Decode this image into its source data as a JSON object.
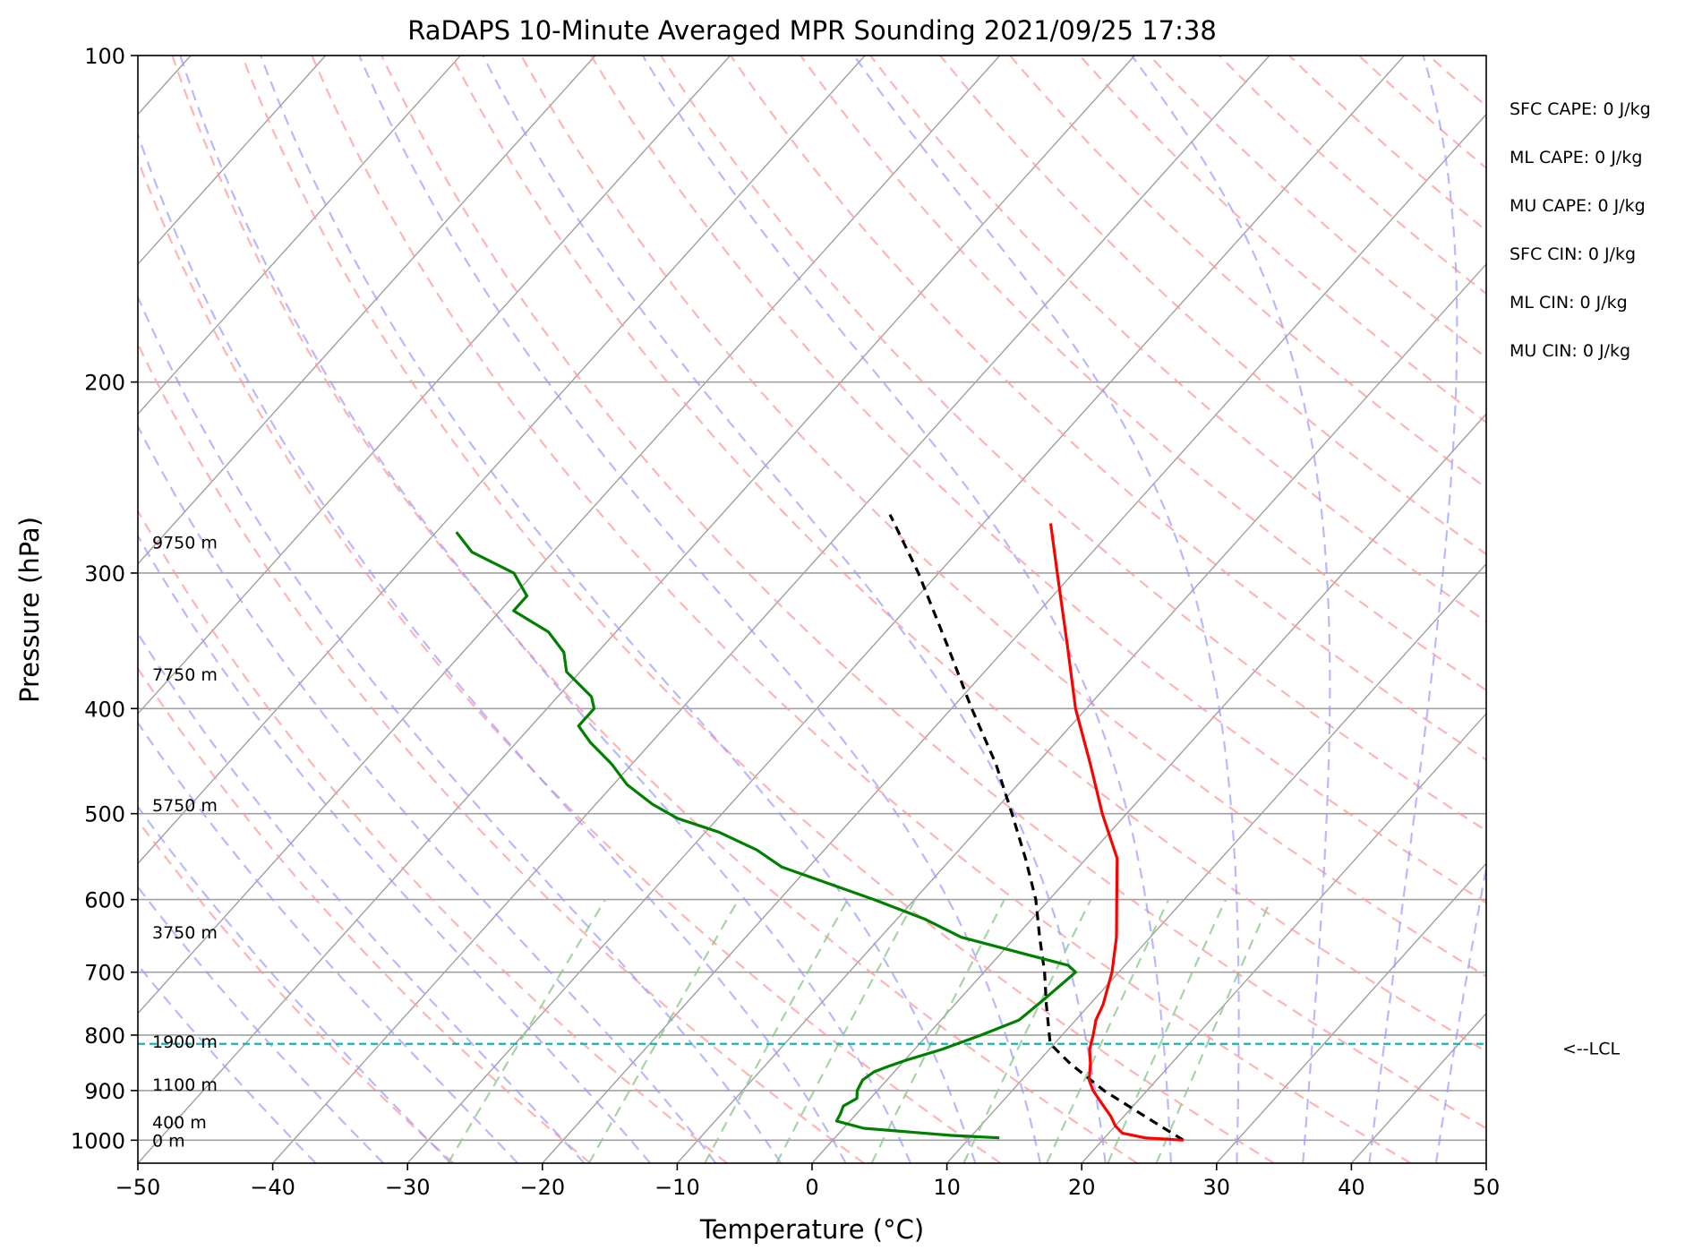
{
  "chart_data": {
    "type": "skew-t log-p sounding",
    "title": "RaDAPS 10-Minute Averaged MPR Sounding 2021/09/25 17:38",
    "xlabel": "Temperature (°C)",
    "ylabel": "Pressure (hPa)",
    "xlim": [
      -50,
      50
    ],
    "ylim_hpa": [
      1050,
      100
    ],
    "x_ticks": [
      "−50",
      "−40",
      "−30",
      "−20",
      "−10",
      "0",
      "10",
      "20",
      "30",
      "40",
      "50"
    ],
    "y_ticks": [
      100,
      200,
      300,
      400,
      500,
      600,
      700,
      800,
      900,
      1000
    ],
    "grid": true,
    "colors": {
      "temperature": "#ff0000",
      "dewpoint": "#008000",
      "parcel": "#000000",
      "isotherms": "#a0a0a0",
      "dry_adiabats": "#ff9a9a",
      "moist_adiabats": "#9a9aff",
      "mixing_ratio": "#90c890",
      "lcl_line": "#20b2aa"
    },
    "temperature_profile": [
      {
        "p": 1000,
        "t": 26.0
      },
      {
        "p": 995,
        "t": 23.0
      },
      {
        "p": 985,
        "t": 21.0
      },
      {
        "p": 970,
        "t": 20.0
      },
      {
        "p": 950,
        "t": 19.0
      },
      {
        "p": 925,
        "t": 17.5
      },
      {
        "p": 900,
        "t": 16.0
      },
      {
        "p": 880,
        "t": 15.0
      },
      {
        "p": 850,
        "t": 14.0
      },
      {
        "p": 825,
        "t": 13.0
      },
      {
        "p": 800,
        "t": 12.3
      },
      {
        "p": 775,
        "t": 11.5
      },
      {
        "p": 750,
        "t": 11.0
      },
      {
        "p": 700,
        "t": 9.5
      },
      {
        "p": 650,
        "t": 7.5
      },
      {
        "p": 600,
        "t": 5.0
      },
      {
        "p": 550,
        "t": 2.3
      },
      {
        "p": 500,
        "t": -1.8
      },
      {
        "p": 450,
        "t": -6.0
      },
      {
        "p": 400,
        "t": -10.8
      },
      {
        "p": 350,
        "t": -15.6
      },
      {
        "p": 300,
        "t": -21.2
      },
      {
        "p": 270,
        "t": -25.0
      }
    ],
    "dewpoint_profile": [
      {
        "p": 995,
        "t": 12.2
      },
      {
        "p": 990,
        "t": 8.5
      },
      {
        "p": 975,
        "t": 1.5
      },
      {
        "p": 960,
        "t": -1.0
      },
      {
        "p": 945,
        "t": -1.2
      },
      {
        "p": 930,
        "t": -1.5
      },
      {
        "p": 915,
        "t": -1.0
      },
      {
        "p": 900,
        "t": -1.5
      },
      {
        "p": 880,
        "t": -1.8
      },
      {
        "p": 865,
        "t": -1.5
      },
      {
        "p": 855,
        "t": -0.8
      },
      {
        "p": 845,
        "t": 0.0
      },
      {
        "p": 825,
        "t": 2.0
      },
      {
        "p": 800,
        "t": 4.0
      },
      {
        "p": 775,
        "t": 5.8
      },
      {
        "p": 740,
        "t": 6.3
      },
      {
        "p": 700,
        "t": 6.8
      },
      {
        "p": 690,
        "t": 5.8
      },
      {
        "p": 650,
        "t": -4.0
      },
      {
        "p": 625,
        "t": -8.0
      },
      {
        "p": 600,
        "t": -13.0
      },
      {
        "p": 560,
        "t": -22.0
      },
      {
        "p": 540,
        "t": -25.0
      },
      {
        "p": 520,
        "t": -29.0
      },
      {
        "p": 505,
        "t": -33.0
      },
      {
        "p": 490,
        "t": -35.8
      },
      {
        "p": 470,
        "t": -39.0
      },
      {
        "p": 450,
        "t": -41.5
      },
      {
        "p": 430,
        "t": -44.5
      },
      {
        "p": 415,
        "t": -46.5
      },
      {
        "p": 400,
        "t": -46.5
      },
      {
        "p": 390,
        "t": -47.5
      },
      {
        "p": 370,
        "t": -51.0
      },
      {
        "p": 355,
        "t": -52.5
      },
      {
        "p": 340,
        "t": -55.0
      },
      {
        "p": 325,
        "t": -59.0
      },
      {
        "p": 315,
        "t": -59.0
      },
      {
        "p": 300,
        "t": -61.5
      },
      {
        "p": 287,
        "t": -66.0
      },
      {
        "p": 275,
        "t": -68.5
      }
    ],
    "parcel_profile": [
      {
        "p": 1000,
        "t": 26.0
      },
      {
        "p": 950,
        "t": 21.5
      },
      {
        "p": 900,
        "t": 16.8
      },
      {
        "p": 850,
        "t": 12.5
      },
      {
        "p": 815,
        "t": 9.7
      },
      {
        "p": 750,
        "t": 6.8
      },
      {
        "p": 700,
        "t": 4.5
      },
      {
        "p": 650,
        "t": 1.8
      },
      {
        "p": 600,
        "t": -1.0
      },
      {
        "p": 550,
        "t": -4.5
      },
      {
        "p": 500,
        "t": -8.5
      },
      {
        "p": 450,
        "t": -13.0
      },
      {
        "p": 400,
        "t": -18.5
      },
      {
        "p": 350,
        "t": -24.5
      },
      {
        "p": 300,
        "t": -31.5
      },
      {
        "p": 265,
        "t": -37.5
      }
    ],
    "lcl": {
      "p": 815,
      "label": "<--LCL"
    },
    "height_labels": [
      {
        "p": 1000,
        "text": "0 m"
      },
      {
        "p": 962,
        "text": "400 m"
      },
      {
        "p": 888,
        "text": "1100 m"
      },
      {
        "p": 811,
        "text": "1900 m"
      },
      {
        "p": 643,
        "text": "3750 m"
      },
      {
        "p": 491,
        "text": "5750 m"
      },
      {
        "p": 372,
        "text": "7750 m"
      },
      {
        "p": 281,
        "text": "9750 m"
      }
    ],
    "indices": [
      "SFC CAPE: 0 J/kg",
      "ML CAPE: 0 J/kg",
      "MU CAPE: 0 J/kg",
      "SFC CIN: 0 J/kg",
      "ML CIN: 0 J/kg",
      "MU CIN: 0 J/kg"
    ]
  }
}
